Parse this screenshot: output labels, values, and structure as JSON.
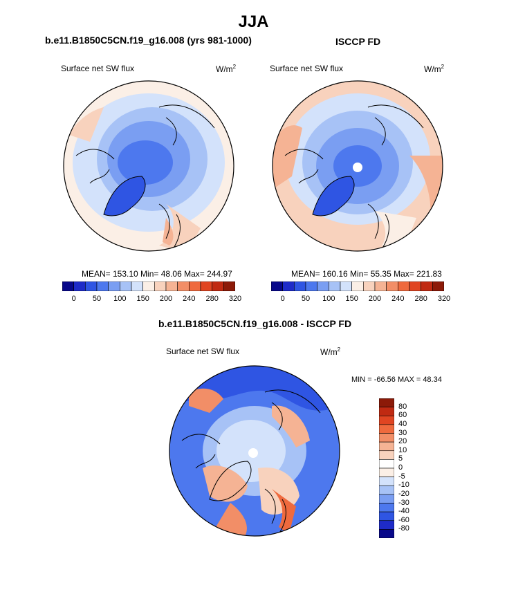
{
  "main_title": "JJA",
  "panels": [
    {
      "title": "b.e11.B1850C5CN.f19_g16.008 (yrs 981-1000)",
      "left_label": "Surface net SW flux",
      "units": "W/m",
      "units_sup": "2",
      "stats": "MEAN= 153.10  Min=  48.06  Max= 244.97"
    },
    {
      "title": "ISCCP FD",
      "left_label": "Surface net SW flux",
      "units": "W/m",
      "units_sup": "2",
      "stats": "MEAN= 160.16  Min=  55.35  Max= 221.83"
    }
  ],
  "diff_panel": {
    "title": "b.e11.B1850C5CN.f19_g16.008 - ISCCP FD",
    "left_label": "Surface net SW flux",
    "units": "W/m",
    "units_sup": "2",
    "stats": "MIN = -66.56 MAX =  48.34"
  },
  "colorbar_abs": {
    "tick_labels": [
      "0",
      "50",
      "100",
      "150",
      "200",
      "240",
      "280",
      "320"
    ],
    "colors": [
      "#08088a",
      "#1e2bc8",
      "#2f55e3",
      "#4d78ee",
      "#7a9ef2",
      "#a7c2f6",
      "#d3e2fb",
      "#fbefe6",
      "#f8d2bd",
      "#f5b394",
      "#f28e67",
      "#ef6a3e",
      "#e04522",
      "#c02a12",
      "#8c1a08"
    ]
  },
  "colorbar_diff": {
    "tick_labels": [
      "80",
      "60",
      "40",
      "30",
      "20",
      "10",
      "5",
      "0",
      "-5",
      "-10",
      "-20",
      "-30",
      "-40",
      "-60",
      "-80"
    ],
    "colors": [
      "#8c1a08",
      "#c02a12",
      "#e04522",
      "#ef6a3e",
      "#f28e67",
      "#f5b394",
      "#f8d2bd",
      "#fbefe6",
      "#d3e2fb",
      "#a7c2f6",
      "#7a9ef2",
      "#4d78ee",
      "#2f55e3",
      "#1e2bc8",
      "#08088a"
    ]
  }
}
